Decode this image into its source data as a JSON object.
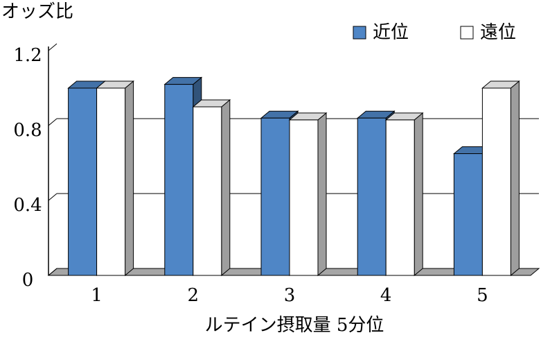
{
  "chart_data": {
    "type": "bar3d",
    "ylabel": "オッズ比",
    "xlabel": "ルテイン摂取量 5分位",
    "categories": [
      "1",
      "2",
      "3",
      "4",
      "5"
    ],
    "series": [
      {
        "name": "近位",
        "color": "#4f86c6",
        "values": [
          1.0,
          1.02,
          0.84,
          0.84,
          0.65
        ]
      },
      {
        "name": "遠位",
        "color": "#ffffff",
        "values": [
          1.0,
          0.9,
          0.83,
          0.83,
          1.0
        ]
      }
    ],
    "ylim": [
      0,
      1.2
    ],
    "yticks": [
      0,
      0.4,
      0.8,
      1.2
    ],
    "grid": true,
    "legend": "top-right"
  }
}
